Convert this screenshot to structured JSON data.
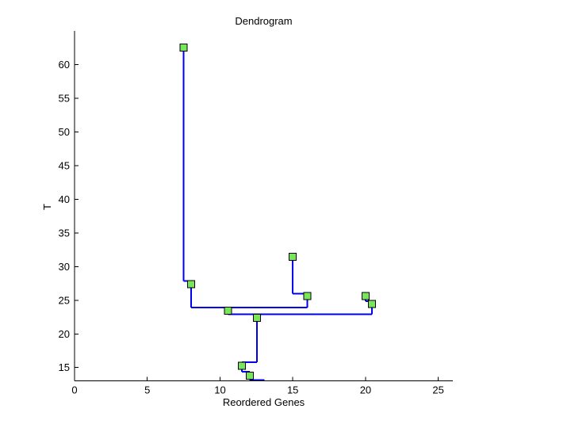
{
  "title": "Dendrogram",
  "xlabel": "Reordered Genes",
  "ylabel": "T",
  "chart_data": {
    "type": "dendrogram",
    "title": "Dendrogram",
    "xlabel": "Reordered Genes",
    "ylabel": "T",
    "xlim": [
      0,
      26
    ],
    "ylim": [
      13,
      65
    ],
    "x_ticks": [
      0,
      5,
      10,
      15,
      20,
      25
    ],
    "y_ticks": [
      15,
      20,
      25,
      30,
      35,
      40,
      45,
      50,
      55,
      60
    ],
    "grid": false,
    "legend": null,
    "axis_color": "#000000",
    "line_color": "#0000ee",
    "marker_fill": "#77e65a",
    "marker_edge": "#000000",
    "nodes": [
      {
        "x": 7.5,
        "t": 62.55
      },
      {
        "x": 8.0,
        "t": 27.4
      },
      {
        "x": 10.55,
        "t": 23.45
      },
      {
        "x": 12.55,
        "t": 22.4
      },
      {
        "x": 11.5,
        "t": 15.25
      },
      {
        "x": 12.05,
        "t": 13.8
      },
      {
        "x": 15.0,
        "t": 31.45
      },
      {
        "x": 16.0,
        "t": 25.6
      },
      {
        "x": 20.0,
        "t": 25.6
      },
      {
        "x": 20.45,
        "t": 24.45
      }
    ],
    "segments": [
      [
        7.5,
        62.55,
        7.5,
        27.85
      ],
      [
        7.5,
        27.85,
        8.0,
        27.85
      ],
      [
        8.0,
        27.85,
        8.0,
        23.9
      ],
      [
        8.0,
        23.9,
        16.0,
        23.9
      ],
      [
        16.0,
        23.9,
        16.0,
        26.0
      ],
      [
        15.0,
        26.0,
        16.0,
        26.0
      ],
      [
        15.0,
        26.0,
        15.0,
        31.45
      ],
      [
        10.55,
        22.9,
        20.45,
        22.9
      ],
      [
        12.55,
        22.9,
        12.55,
        15.8
      ],
      [
        11.5,
        15.8,
        12.55,
        15.8
      ],
      [
        11.5,
        15.8,
        11.5,
        14.4
      ],
      [
        11.5,
        14.4,
        12.05,
        14.4
      ],
      [
        12.05,
        14.4,
        12.05,
        13.15
      ],
      [
        12.05,
        13.15,
        13.05,
        13.15
      ],
      [
        20.0,
        25.6,
        20.0,
        24.85
      ],
      [
        20.0,
        24.85,
        20.45,
        24.85
      ],
      [
        20.45,
        24.85,
        20.45,
        22.9
      ]
    ]
  }
}
